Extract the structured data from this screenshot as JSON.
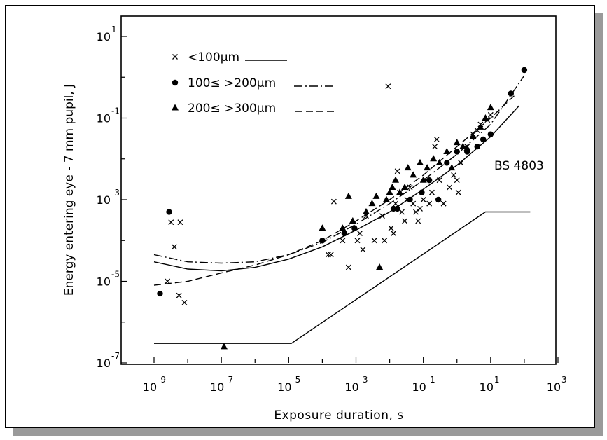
{
  "chart_data": {
    "type": "scatter",
    "title": "",
    "xlabel": "Exposure duration, s",
    "ylabel": "Energy entering eye - 7 mm pupil, J",
    "x_scale": "log",
    "y_scale": "log",
    "xlim": [
      1e-09,
      1000.0
    ],
    "ylim": [
      1e-07,
      10
    ],
    "grid": false,
    "legend_position": "top-left",
    "x_ticks": [
      {
        "base": "10",
        "exp": "-9",
        "value": 1e-09
      },
      {
        "base": "10",
        "exp": "-7",
        "value": 1e-07
      },
      {
        "base": "10",
        "exp": "-5",
        "value": 1e-05
      },
      {
        "base": "10",
        "exp": "-3",
        "value": 0.001
      },
      {
        "base": "10",
        "exp": "-1",
        "value": 0.1
      },
      {
        "base": "10",
        "exp": "1",
        "value": 10
      },
      {
        "base": "10",
        "exp": "3",
        "value": 1000
      }
    ],
    "y_ticks": [
      {
        "base": "10",
        "exp": "-7",
        "value": 1e-07
      },
      {
        "base": "10",
        "exp": "-5",
        "value": 1e-05
      },
      {
        "base": "10",
        "exp": "-3",
        "value": 0.001
      },
      {
        "base": "10",
        "exp": "-1",
        "value": 0.1
      },
      {
        "base": "10",
        "exp": "1",
        "value": 10
      }
    ],
    "series": [
      {
        "name": "<100μm",
        "marker": "x",
        "line_style": "solid",
        "points": [
          [
            2.5e-09,
            1e-05
          ],
          [
            3.2e-09,
            0.00028
          ],
          [
            4e-09,
            7e-05
          ],
          [
            5.5e-09,
            4.5e-06
          ],
          [
            6e-09,
            0.00028
          ],
          [
            8e-09,
            3e-06
          ],
          [
            0.00015,
            4.5e-05
          ],
          [
            0.00018,
            4.5e-05
          ],
          [
            0.00022,
            0.0009
          ],
          [
            0.0004,
            0.0001
          ],
          [
            0.0006,
            2.2e-05
          ],
          [
            0.0011,
            0.0001
          ],
          [
            0.0013,
            0.00015
          ],
          [
            0.0016,
            6e-05
          ],
          [
            0.002,
            0.0004
          ],
          [
            0.0035,
            0.0001
          ],
          [
            0.006,
            0.0004
          ],
          [
            0.007,
            0.0001
          ],
          [
            0.009,
            0.6
          ],
          [
            0.011,
            0.0002
          ],
          [
            0.013,
            0.00015
          ],
          [
            0.015,
            0.0008
          ],
          [
            0.017,
            0.005
          ],
          [
            0.02,
            0.0015
          ],
          [
            0.023,
            0.0005
          ],
          [
            0.028,
            0.0003
          ],
          [
            0.033,
            0.001
          ],
          [
            0.04,
            0.002
          ],
          [
            0.05,
            0.0008
          ],
          [
            0.06,
            0.0005
          ],
          [
            0.07,
            0.0003
          ],
          [
            0.08,
            0.0006
          ],
          [
            0.1,
            0.001
          ],
          [
            0.12,
            0.003
          ],
          [
            0.15,
            0.0008
          ],
          [
            0.18,
            0.0015
          ],
          [
            0.22,
            0.02
          ],
          [
            0.25,
            0.03
          ],
          [
            0.3,
            0.003
          ],
          [
            0.4,
            0.0008
          ],
          [
            0.6,
            0.002
          ],
          [
            0.8,
            0.004
          ],
          [
            1,
            0.003
          ],
          [
            1.1,
            0.0015
          ],
          [
            1.3,
            0.008
          ],
          [
            2,
            0.02
          ],
          [
            3,
            0.04
          ],
          [
            4,
            0.05
          ],
          [
            5,
            0.07
          ],
          [
            8,
            0.09
          ],
          [
            10,
            0.12
          ]
        ]
      },
      {
        "name": "100≤ >200μm",
        "marker": "circle",
        "line_style": "dash-dot",
        "points": [
          [
            1.5e-09,
            5e-06
          ],
          [
            2.8e-09,
            0.0005
          ],
          [
            0.0001,
            0.0001
          ],
          [
            0.00045,
            0.00015
          ],
          [
            0.0009,
            0.0002
          ],
          [
            0.013,
            0.0006
          ],
          [
            0.017,
            0.0006
          ],
          [
            0.04,
            0.001
          ],
          [
            0.09,
            0.0015
          ],
          [
            0.15,
            0.003
          ],
          [
            0.28,
            0.001
          ],
          [
            0.5,
            0.008
          ],
          [
            1,
            0.015
          ],
          [
            2,
            0.015
          ],
          [
            4,
            0.02
          ],
          [
            6,
            0.03
          ],
          [
            10,
            0.04
          ],
          [
            40,
            0.4
          ],
          [
            100,
            1.5
          ]
        ]
      },
      {
        "name": "200≤ >300μm",
        "marker": "triangle",
        "line_style": "dashed",
        "points": [
          [
            1.2e-07,
            2.5e-07
          ],
          [
            0.0001,
            0.0002
          ],
          [
            0.0004,
            0.0002
          ],
          [
            0.0006,
            0.0012
          ],
          [
            0.0008,
            0.0003
          ],
          [
            0.002,
            0.0005
          ],
          [
            0.003,
            0.0008
          ],
          [
            0.004,
            0.0012
          ],
          [
            0.005,
            2.2e-05
          ],
          [
            0.008,
            0.001
          ],
          [
            0.01,
            0.0015
          ],
          [
            0.012,
            0.002
          ],
          [
            0.015,
            0.003
          ],
          [
            0.02,
            0.0015
          ],
          [
            0.028,
            0.002
          ],
          [
            0.035,
            0.006
          ],
          [
            0.05,
            0.004
          ],
          [
            0.08,
            0.008
          ],
          [
            0.1,
            0.003
          ],
          [
            0.13,
            0.006
          ],
          [
            0.2,
            0.01
          ],
          [
            0.3,
            0.008
          ],
          [
            0.5,
            0.015
          ],
          [
            0.7,
            0.006
          ],
          [
            1,
            0.025
          ],
          [
            1.5,
            0.02
          ],
          [
            2,
            0.018
          ],
          [
            3,
            0.035
          ],
          [
            5,
            0.06
          ],
          [
            7,
            0.1
          ],
          [
            10,
            0.18
          ]
        ]
      }
    ],
    "fit_curves": [
      {
        "series": "<100μm",
        "line_style": "solid",
        "points": [
          [
            1e-09,
            3e-05
          ],
          [
            1e-08,
            2e-05
          ],
          [
            1e-07,
            1.8e-05
          ],
          [
            1e-06,
            2.2e-05
          ],
          [
            1e-05,
            3.5e-05
          ],
          [
            0.0001,
            7e-05
          ],
          [
            0.001,
            0.00018
          ],
          [
            0.01,
            0.0005
          ],
          [
            0.1,
            0.0018
          ],
          [
            1,
            0.007
          ],
          [
            10,
            0.035
          ],
          [
            70,
            0.2
          ]
        ]
      },
      {
        "series": "100≤ >200μm",
        "line_style": "dash-dot",
        "points": [
          [
            1e-09,
            4.5e-05
          ],
          [
            1e-08,
            3e-05
          ],
          [
            1e-07,
            2.8e-05
          ],
          [
            1e-06,
            3e-05
          ],
          [
            1e-05,
            4.5e-05
          ],
          [
            0.0001,
            9e-05
          ],
          [
            0.001,
            0.00025
          ],
          [
            0.01,
            0.0008
          ],
          [
            0.1,
            0.003
          ],
          [
            1,
            0.013
          ],
          [
            10,
            0.07
          ],
          [
            100,
            1.1
          ]
        ]
      },
      {
        "series": "200≤ >300μm",
        "line_style": "dashed",
        "points": [
          [
            1e-09,
            8e-06
          ],
          [
            1e-08,
            1e-05
          ],
          [
            1e-07,
            1.6e-05
          ],
          [
            1e-06,
            2.5e-05
          ],
          [
            1e-05,
            4.5e-05
          ],
          [
            0.0001,
            0.0001
          ],
          [
            0.001,
            0.0003
          ],
          [
            0.01,
            0.001
          ],
          [
            0.1,
            0.004
          ],
          [
            1,
            0.02
          ],
          [
            10,
            0.1
          ],
          [
            50,
            0.35
          ]
        ]
      }
    ],
    "reference_line": {
      "label": "BS 4803",
      "points": [
        [
          1e-09,
          3e-07
        ],
        [
          1.2e-05,
          3e-07
        ],
        [
          7,
          0.0005
        ],
        [
          150,
          0.0005
        ]
      ]
    }
  }
}
